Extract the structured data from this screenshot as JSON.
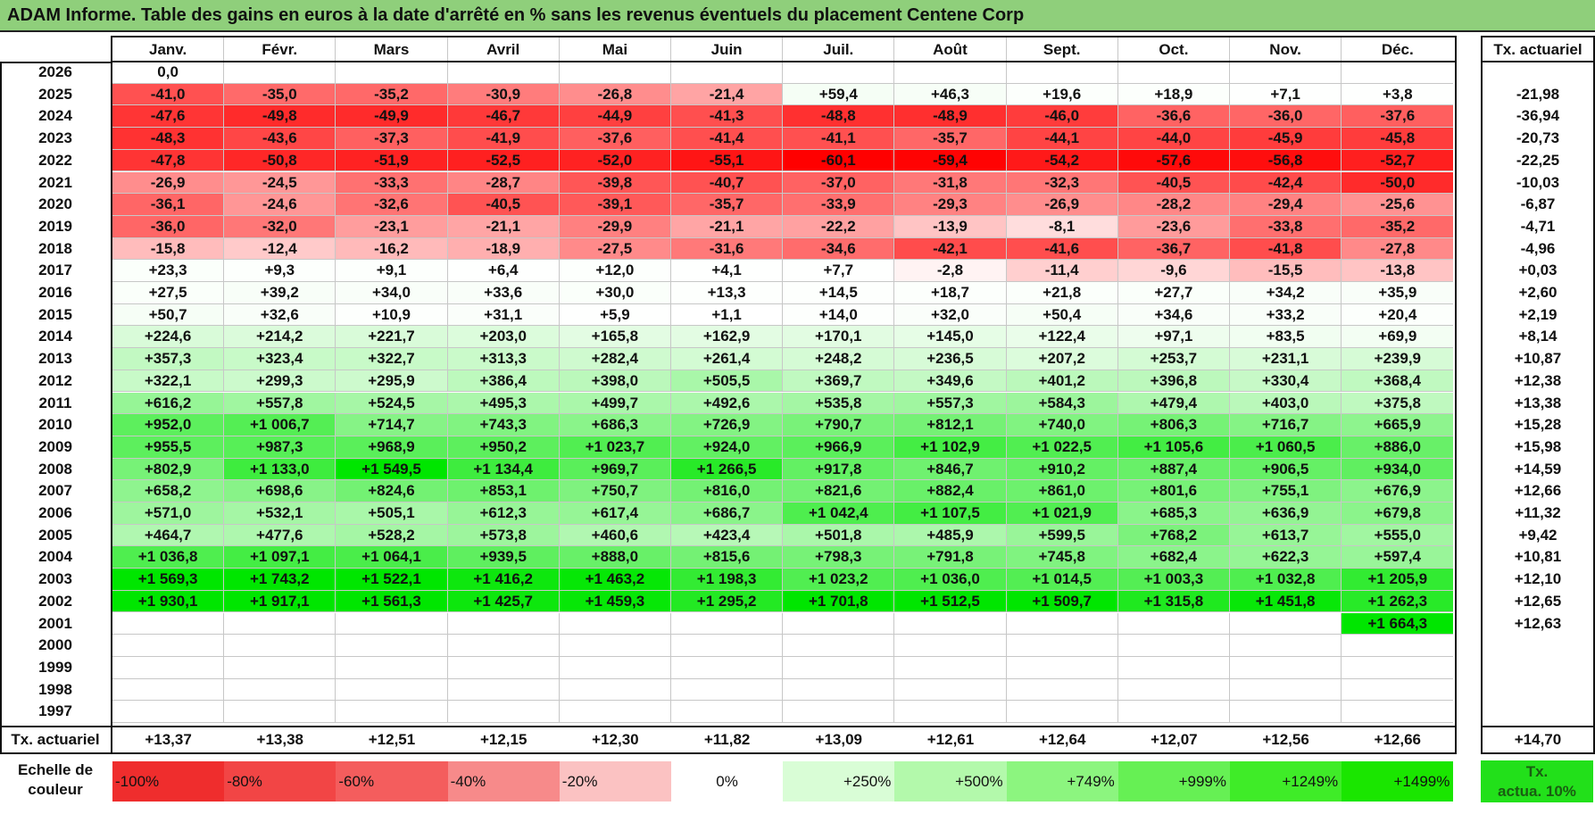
{
  "title": "ADAM Informe. Table des gains en euros à la date d'arrêté en % sans les revenus éventuels du placement Centene Corp",
  "months": [
    "Janv.",
    "Févr.",
    "Mars",
    "Avril",
    "Mai",
    "Juin",
    "Juil.",
    "Août",
    "Sept.",
    "Oct.",
    "Nov.",
    "Déc."
  ],
  "tx_header": "Tx. actuariel",
  "rows": [
    {
      "year": "2026",
      "values": [
        "0,0",
        "",
        "",
        "",
        "",
        "",
        "",
        "",
        "",
        "",
        "",
        ""
      ],
      "tx": ""
    },
    {
      "year": "2025",
      "values": [
        "-41,0",
        "-35,0",
        "-35,2",
        "-30,9",
        "-26,8",
        "-21,4",
        "+59,4",
        "+46,3",
        "+19,6",
        "+18,9",
        "+7,1",
        "+3,8"
      ],
      "tx": "-21,98"
    },
    {
      "year": "2024",
      "values": [
        "-47,6",
        "-49,8",
        "-49,9",
        "-46,7",
        "-44,9",
        "-41,3",
        "-48,8",
        "-48,9",
        "-46,0",
        "-36,6",
        "-36,0",
        "-37,6"
      ],
      "tx": "-36,94"
    },
    {
      "year": "2023",
      "values": [
        "-48,3",
        "-43,6",
        "-37,3",
        "-41,9",
        "-37,6",
        "-41,4",
        "-41,1",
        "-35,7",
        "-44,1",
        "-44,0",
        "-45,9",
        "-45,8"
      ],
      "tx": "-20,73"
    },
    {
      "year": "2022",
      "values": [
        "-47,8",
        "-50,8",
        "-51,9",
        "-52,5",
        "-52,0",
        "-55,1",
        "-60,1",
        "-59,4",
        "-54,2",
        "-57,6",
        "-56,8",
        "-52,7"
      ],
      "tx": "-22,25"
    },
    {
      "year": "2021",
      "values": [
        "-26,9",
        "-24,5",
        "-33,3",
        "-28,7",
        "-39,8",
        "-40,7",
        "-37,0",
        "-31,8",
        "-32,3",
        "-40,5",
        "-42,4",
        "-50,0"
      ],
      "tx": "-10,03"
    },
    {
      "year": "2020",
      "values": [
        "-36,1",
        "-24,6",
        "-32,6",
        "-40,5",
        "-39,1",
        "-35,7",
        "-33,9",
        "-29,3",
        "-26,9",
        "-28,2",
        "-29,4",
        "-25,6"
      ],
      "tx": "-6,87"
    },
    {
      "year": "2019",
      "values": [
        "-36,0",
        "-32,0",
        "-23,1",
        "-21,1",
        "-29,9",
        "-21,1",
        "-22,2",
        "-13,9",
        "-8,1",
        "-23,6",
        "-33,8",
        "-35,2"
      ],
      "tx": "-4,71"
    },
    {
      "year": "2018",
      "values": [
        "-15,8",
        "-12,4",
        "-16,2",
        "-18,9",
        "-27,5",
        "-31,6",
        "-34,6",
        "-42,1",
        "-41,6",
        "-36,7",
        "-41,8",
        "-27,8"
      ],
      "tx": "-4,96"
    },
    {
      "year": "2017",
      "values": [
        "+23,3",
        "+9,3",
        "+9,1",
        "+6,4",
        "+12,0",
        "+4,1",
        "+7,7",
        "-2,8",
        "-11,4",
        "-9,6",
        "-15,5",
        "-13,8"
      ],
      "tx": "+0,03"
    },
    {
      "year": "2016",
      "values": [
        "+27,5",
        "+39,2",
        "+34,0",
        "+33,6",
        "+30,0",
        "+13,3",
        "+14,5",
        "+18,7",
        "+21,8",
        "+27,7",
        "+34,2",
        "+35,9"
      ],
      "tx": "+2,60"
    },
    {
      "year": "2015",
      "values": [
        "+50,7",
        "+32,6",
        "+10,9",
        "+31,1",
        "+5,9",
        "+1,1",
        "+14,0",
        "+32,0",
        "+50,4",
        "+34,6",
        "+33,2",
        "+20,4"
      ],
      "tx": "+2,19"
    },
    {
      "year": "2014",
      "values": [
        "+224,6",
        "+214,2",
        "+221,7",
        "+203,0",
        "+165,8",
        "+162,9",
        "+170,1",
        "+145,0",
        "+122,4",
        "+97,1",
        "+83,5",
        "+69,9"
      ],
      "tx": "+8,14"
    },
    {
      "year": "2013",
      "values": [
        "+357,3",
        "+323,4",
        "+322,7",
        "+313,3",
        "+282,4",
        "+261,4",
        "+248,2",
        "+236,5",
        "+207,2",
        "+253,7",
        "+231,1",
        "+239,9"
      ],
      "tx": "+10,87"
    },
    {
      "year": "2012",
      "values": [
        "+322,1",
        "+299,3",
        "+295,9",
        "+386,4",
        "+398,0",
        "+505,5",
        "+369,7",
        "+349,6",
        "+401,2",
        "+396,8",
        "+330,4",
        "+368,4"
      ],
      "tx": "+12,38"
    },
    {
      "year": "2011",
      "values": [
        "+616,2",
        "+557,8",
        "+524,5",
        "+495,3",
        "+499,7",
        "+492,6",
        "+535,8",
        "+557,3",
        "+584,3",
        "+479,4",
        "+403,0",
        "+375,8"
      ],
      "tx": "+13,38"
    },
    {
      "year": "2010",
      "values": [
        "+952,0",
        "+1 006,7",
        "+714,7",
        "+743,3",
        "+686,3",
        "+726,9",
        "+790,7",
        "+812,1",
        "+740,0",
        "+806,3",
        "+716,7",
        "+665,9"
      ],
      "tx": "+15,28"
    },
    {
      "year": "2009",
      "values": [
        "+955,5",
        "+987,3",
        "+968,9",
        "+950,2",
        "+1 023,7",
        "+924,0",
        "+966,9",
        "+1 102,9",
        "+1 022,5",
        "+1 105,6",
        "+1 060,5",
        "+886,0"
      ],
      "tx": "+15,98"
    },
    {
      "year": "2008",
      "values": [
        "+802,9",
        "+1 133,0",
        "+1 549,5",
        "+1 134,4",
        "+969,7",
        "+1 266,5",
        "+917,8",
        "+846,7",
        "+910,2",
        "+887,4",
        "+906,5",
        "+934,0"
      ],
      "tx": "+14,59"
    },
    {
      "year": "2007",
      "values": [
        "+658,2",
        "+698,6",
        "+824,6",
        "+853,1",
        "+750,7",
        "+816,0",
        "+821,6",
        "+882,4",
        "+861,0",
        "+801,6",
        "+755,1",
        "+676,9"
      ],
      "tx": "+12,66"
    },
    {
      "year": "2006",
      "values": [
        "+571,0",
        "+532,1",
        "+505,1",
        "+612,3",
        "+617,4",
        "+686,7",
        "+1 042,4",
        "+1 107,5",
        "+1 021,9",
        "+685,3",
        "+636,9",
        "+679,8"
      ],
      "tx": "+11,32"
    },
    {
      "year": "2005",
      "values": [
        "+464,7",
        "+477,6",
        "+528,2",
        "+573,8",
        "+460,6",
        "+423,4",
        "+501,8",
        "+485,9",
        "+599,5",
        "+768,2",
        "+613,7",
        "+555,0"
      ],
      "tx": "+9,42"
    },
    {
      "year": "2004",
      "values": [
        "+1 036,8",
        "+1 097,1",
        "+1 064,1",
        "+939,5",
        "+888,0",
        "+815,6",
        "+798,3",
        "+791,8",
        "+745,8",
        "+682,4",
        "+622,3",
        "+597,4"
      ],
      "tx": "+10,81"
    },
    {
      "year": "2003",
      "values": [
        "+1 569,3",
        "+1 743,2",
        "+1 522,1",
        "+1 416,2",
        "+1 463,2",
        "+1 198,3",
        "+1 023,2",
        "+1 036,0",
        "+1 014,5",
        "+1 003,3",
        "+1 032,8",
        "+1 205,9"
      ],
      "tx": "+12,10"
    },
    {
      "year": "2002",
      "values": [
        "+1 930,1",
        "+1 917,1",
        "+1 561,3",
        "+1 425,7",
        "+1 459,3",
        "+1 295,2",
        "+1 701,8",
        "+1 512,5",
        "+1 509,7",
        "+1 315,8",
        "+1 451,8",
        "+1 262,3"
      ],
      "tx": "+12,65"
    },
    {
      "year": "2001",
      "values": [
        "",
        "",
        "",
        "",
        "",
        "",
        "",
        "",
        "",
        "",
        "",
        "+1 664,3"
      ],
      "tx": "+12,63"
    },
    {
      "year": "2000",
      "values": [
        "",
        "",
        "",
        "",
        "",
        "",
        "",
        "",
        "",
        "",
        "",
        ""
      ],
      "tx": ""
    },
    {
      "year": "1999",
      "values": [
        "",
        "",
        "",
        "",
        "",
        "",
        "",
        "",
        "",
        "",
        "",
        ""
      ],
      "tx": ""
    },
    {
      "year": "1998",
      "values": [
        "",
        "",
        "",
        "",
        "",
        "",
        "",
        "",
        "",
        "",
        "",
        ""
      ],
      "tx": ""
    },
    {
      "year": "1997",
      "values": [
        "",
        "",
        "",
        "",
        "",
        "",
        "",
        "",
        "",
        "",
        "",
        ""
      ],
      "tx": ""
    }
  ],
  "footer": {
    "label": "Tx. actuariel",
    "values": [
      "+13,37",
      "+13,38",
      "+12,51",
      "+12,15",
      "+12,30",
      "+11,82",
      "+13,09",
      "+12,61",
      "+12,64",
      "+12,07",
      "+12,56",
      "+12,66"
    ],
    "total": "+14,70"
  },
  "scale": {
    "label_line1": "Echelle de",
    "label_line2": "couleur",
    "items": [
      {
        "text": "-100%",
        "color": "#ef2d2d",
        "align": "left"
      },
      {
        "text": "-80%",
        "color": "#f24545",
        "align": "left"
      },
      {
        "text": "-60%",
        "color": "#f45d5d",
        "align": "left"
      },
      {
        "text": "-40%",
        "color": "#f78a8a",
        "align": "left"
      },
      {
        "text": "-20%",
        "color": "#fbc2c2",
        "align": "left"
      },
      {
        "text": "0%",
        "color": "#ffffff",
        "align": "center"
      },
      {
        "text": "+250%",
        "color": "#d9fdd6",
        "align": "right"
      },
      {
        "text": "+500%",
        "color": "#b3f9ab",
        "align": "right"
      },
      {
        "text": "+749%",
        "color": "#8cf57f",
        "align": "right"
      },
      {
        "text": "+999%",
        "color": "#66f054",
        "align": "right"
      },
      {
        "text": "+1249%",
        "color": "#3fec28",
        "align": "right"
      },
      {
        "text": "+1499%",
        "color": "#1ae600",
        "align": "right"
      }
    ],
    "tx_line1": "Tx.",
    "tx_line2": "actua. 10%",
    "tx_color": "#22e01a"
  },
  "colors": {
    "title_bg": "#8fcf7b",
    "neg_max": "#ff0000",
    "pos_max": "#00e600"
  }
}
